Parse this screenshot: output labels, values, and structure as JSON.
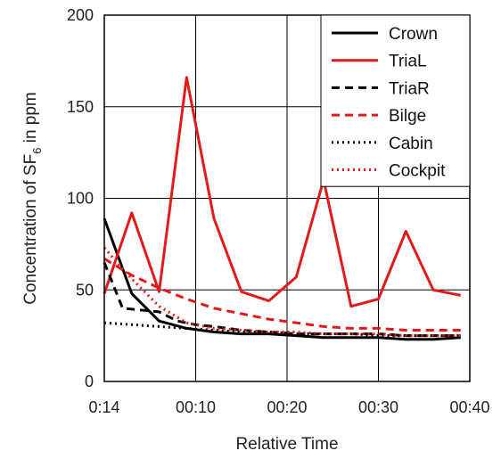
{
  "chart_data": {
    "type": "line",
    "title": "",
    "xlabel": "Relative Time",
    "ylabel": {
      "prefix": "Concentration of SF",
      "subscript": "6",
      "suffix": " in ppm"
    },
    "x_tick_labels": [
      "0:14",
      "00:10",
      "00:20",
      "00:30",
      "00:40"
    ],
    "y_ticks": [
      0,
      50,
      100,
      150,
      200
    ],
    "ylim": [
      0,
      200
    ],
    "xlim": [
      0,
      40
    ],
    "grid": true,
    "legend_position": "top-right",
    "series": [
      {
        "name": "Crown",
        "color": "#000000",
        "dash": "solid",
        "x": [
          0,
          3,
          6,
          9,
          12,
          15,
          18,
          21,
          24,
          27,
          30,
          33,
          36,
          39
        ],
        "y": [
          89,
          48,
          33,
          29,
          27,
          26,
          26,
          25,
          24,
          24,
          24,
          23,
          23,
          24
        ]
      },
      {
        "name": "TriaL",
        "color": "#e31a1c",
        "dash": "solid",
        "x": [
          0,
          3,
          6,
          9,
          12,
          15,
          18,
          21,
          24,
          27,
          30,
          33,
          36,
          39
        ],
        "y": [
          48,
          92,
          49,
          166,
          89,
          49,
          44,
          57,
          110,
          41,
          45,
          82,
          50,
          47
        ]
      },
      {
        "name": "TriaR",
        "color": "#000000",
        "dash": "dashed",
        "x": [
          0,
          2,
          4,
          6,
          8,
          10,
          12,
          15,
          18,
          21,
          24,
          27,
          30,
          33,
          36,
          39
        ],
        "y": [
          65,
          40,
          39,
          38,
          33,
          31,
          30,
          28,
          27,
          26,
          26,
          26,
          26,
          25,
          25,
          25
        ]
      },
      {
        "name": "Bilge",
        "color": "#e31a1c",
        "dash": "dashed",
        "x": [
          0,
          3,
          6,
          9,
          12,
          15,
          18,
          21,
          24,
          27,
          30,
          33,
          36,
          39
        ],
        "y": [
          67,
          58,
          51,
          45,
          40,
          37,
          34,
          32,
          30,
          29,
          29,
          28,
          28,
          28
        ]
      },
      {
        "name": "Cabin",
        "color": "#000000",
        "dash": "dotted",
        "x": [
          0,
          3,
          6,
          9,
          12,
          15,
          18,
          21,
          24,
          27,
          30,
          33,
          36,
          39
        ],
        "y": [
          32,
          31,
          30,
          29,
          28,
          27,
          27,
          26,
          26,
          26,
          25,
          25,
          25,
          25
        ]
      },
      {
        "name": "Cockpit",
        "color": "#e31a1c",
        "dash": "dotted",
        "x": [
          0,
          3,
          6,
          9,
          12,
          15,
          18,
          21,
          24,
          27,
          30,
          33,
          36,
          39
        ],
        "y": [
          73,
          56,
          41,
          32,
          29,
          28,
          27,
          27,
          26,
          26,
          26,
          25,
          25,
          25
        ]
      }
    ]
  }
}
